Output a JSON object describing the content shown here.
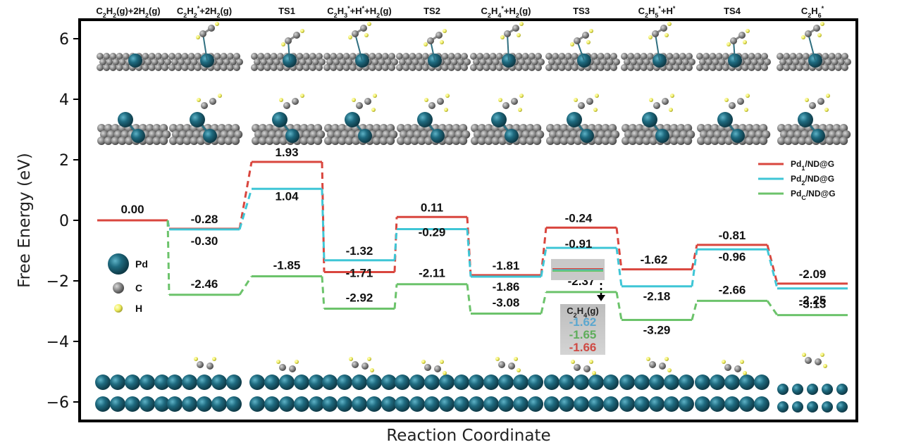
{
  "chart_data": {
    "type": "line",
    "xlabel": "Reaction Coordinate",
    "ylabel": "Free Energy (eV)",
    "ylim": [
      -6.6,
      6.6
    ],
    "yticks": [
      6,
      4,
      2,
      0,
      -2,
      -4,
      -6
    ],
    "ytick_labels": [
      "6",
      "4",
      "2",
      "0",
      "−2",
      "−4",
      "−6"
    ],
    "stages": [
      {
        "text": "C",
        "sub": "2",
        "parts": [
          [
            "C",
            ""
          ],
          [
            "H",
            "2"
          ],
          [
            "(g)+2H",
            ""
          ],
          [
            "",
            ""
          ],
          [
            "2(g)",
            ""
          ]
        ]
      },
      {}
    ],
    "stage_labels": [
      [
        [
          "C",
          ""
        ],
        [
          "2",
          "sub"
        ],
        [
          "H",
          ""
        ],
        [
          "2",
          "sub"
        ],
        [
          "(g)+2H",
          ""
        ],
        [
          "2",
          "sub"
        ],
        [
          "(g)",
          ""
        ]
      ],
      [
        [
          "C",
          ""
        ],
        [
          "2",
          "sub"
        ],
        [
          "H",
          ""
        ],
        [
          "2",
          "sub"
        ],
        [
          "*",
          "sup"
        ],
        [
          "+2H",
          ""
        ],
        [
          "2",
          "sub"
        ],
        [
          "(g)",
          ""
        ]
      ],
      [
        [
          "TS1",
          ""
        ]
      ],
      [
        [
          "C",
          ""
        ],
        [
          "2",
          "sub"
        ],
        [
          "H",
          ""
        ],
        [
          "3",
          "sub"
        ],
        [
          "*",
          "sup"
        ],
        [
          "+H",
          ""
        ],
        [
          "*",
          "sup"
        ],
        [
          "+H",
          ""
        ],
        [
          "2",
          "sub"
        ],
        [
          "(g)",
          ""
        ]
      ],
      [
        [
          "TS2",
          ""
        ]
      ],
      [
        [
          "C",
          ""
        ],
        [
          "2",
          "sub"
        ],
        [
          "H",
          ""
        ],
        [
          "4",
          "sub"
        ],
        [
          "*",
          "sup"
        ],
        [
          "+H",
          ""
        ],
        [
          "2",
          "sub"
        ],
        [
          "(g)",
          ""
        ]
      ],
      [
        [
          "TS3",
          ""
        ]
      ],
      [
        [
          "C",
          ""
        ],
        [
          "2",
          "sub"
        ],
        [
          "H",
          ""
        ],
        [
          "5",
          "sub"
        ],
        [
          "*",
          "sup"
        ],
        [
          "+H",
          ""
        ],
        [
          "*",
          "sup"
        ]
      ],
      [
        [
          "TS4",
          ""
        ]
      ],
      [
        [
          "C",
          ""
        ],
        [
          "2",
          "sub"
        ],
        [
          "H",
          ""
        ],
        [
          "6",
          "sub"
        ],
        [
          "*",
          "sup"
        ]
      ]
    ],
    "series": [
      {
        "name_parts": [
          [
            "Pd",
            ""
          ],
          [
            "1",
            "sub"
          ],
          [
            "/ND@G",
            ""
          ]
        ],
        "color": "#d9463e",
        "values": [
          0.0,
          -0.28,
          1.93,
          -1.71,
          0.11,
          -1.81,
          -0.24,
          -1.62,
          -0.81,
          -2.09
        ],
        "labels": [
          "0.00",
          "-0.28",
          "1.93",
          "-1.71",
          "0.11",
          "-1.81",
          "-0.24",
          "-1.62",
          "-0.81",
          "-2.09"
        ]
      },
      {
        "name_parts": [
          [
            "Pd",
            ""
          ],
          [
            "2",
            "sub"
          ],
          [
            "/ND@G",
            ""
          ]
        ],
        "color": "#3fc6d6",
        "values": [
          0.0,
          -0.3,
          1.04,
          -1.32,
          -0.29,
          -1.86,
          -0.91,
          -2.18,
          -0.96,
          -2.25
        ],
        "labels": [
          "",
          "-0.30",
          "1.04",
          "-1.32",
          "-0.29",
          "-1.86",
          "-0.91",
          "-2.18",
          "-0.96",
          "-2.25"
        ]
      },
      {
        "name_parts": [
          [
            "Pd",
            ""
          ],
          [
            "C",
            "sub"
          ],
          [
            "/ND@G",
            ""
          ]
        ],
        "color": "#6cc36b",
        "values": [
          0.0,
          -2.46,
          -1.85,
          -2.92,
          -2.11,
          -3.08,
          -2.37,
          -3.29,
          -2.66,
          -3.13
        ],
        "labels": [
          "",
          "-2.46",
          "-1.85",
          "-2.92",
          "-2.11",
          "-3.08",
          "-2.37",
          "-3.29",
          "-2.66",
          "-3.13"
        ]
      }
    ],
    "desorption": {
      "title_parts": [
        [
          "C",
          ""
        ],
        [
          "2",
          "sub"
        ],
        [
          "H",
          ""
        ],
        [
          "4",
          "sub"
        ],
        [
          "(g)",
          ""
        ]
      ],
      "values": [
        {
          "text": "-1.62",
          "color": "#5ba7cf"
        },
        {
          "text": "-1.65",
          "color": "#5fad5c"
        },
        {
          "text": "-1.66",
          "color": "#cf4a44"
        }
      ],
      "level": -1.65
    },
    "atom_key": [
      {
        "label": "Pd",
        "color": "#1f5f74"
      },
      {
        "label": "C",
        "color": "#808080"
      },
      {
        "label": "H",
        "color": "#f2f26a"
      }
    ],
    "legend_position": "upper-right"
  }
}
